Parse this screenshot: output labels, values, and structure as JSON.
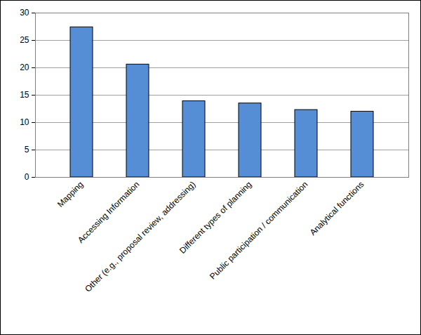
{
  "chart_data": {
    "type": "bar",
    "categories": [
      "Mapping",
      "Accessing Information",
      "Other (e.g., proposal review, addressing)",
      "Different types of planning",
      "Public participation / communication",
      "Analytical functions"
    ],
    "values": [
      27.4,
      20.6,
      13.9,
      13.5,
      12.3,
      12.0
    ],
    "color": "#558ed5",
    "ylim": [
      0,
      30
    ],
    "yticks": [
      0,
      5,
      10,
      15,
      20,
      25,
      30
    ],
    "grid": true
  }
}
